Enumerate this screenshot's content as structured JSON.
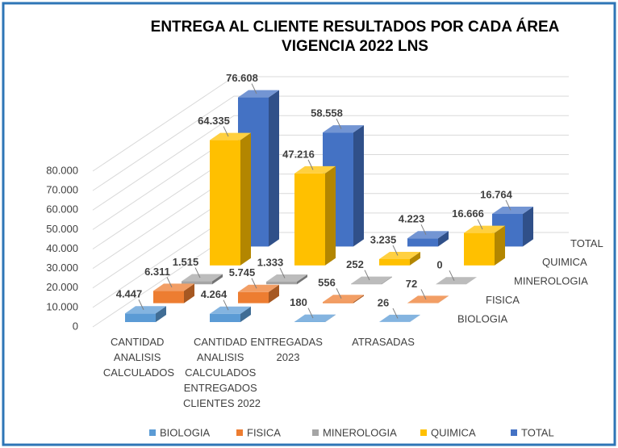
{
  "chart_data": {
    "type": "bar3d",
    "title": [
      "ENTREGA AL CLIENTE RESULTADOS POR CADA ÁREA",
      "VIGENCIA 2022 LNS"
    ],
    "categories": [
      "CANTIDAD ANALISIS CALCULADOS",
      "CANTIDAD ANALISIS CALCULADOS ENTREGADOS CLIENTES 2022",
      "ENTREGADAS 2023",
      "ATRASADAS"
    ],
    "series": [
      {
        "name": "BIOLOGIA",
        "color": "#5b9bd5",
        "values": [
          4447,
          4264,
          180,
          26
        ],
        "value_labels": [
          "4.447",
          "4.264",
          "180",
          "26"
        ]
      },
      {
        "name": "FISICA",
        "color": "#ed7d31",
        "values": [
          6311,
          5745,
          556,
          72
        ],
        "value_labels": [
          "6.311",
          "5.745",
          "556",
          "72"
        ]
      },
      {
        "name": "MINEROLOGIA",
        "color": "#a5a5a5",
        "values": [
          1515,
          1333,
          252,
          0
        ],
        "value_labels": [
          "1.515",
          "1.333",
          "252",
          "0"
        ]
      },
      {
        "name": "QUIMICA",
        "color": "#ffc000",
        "values": [
          64335,
          47216,
          3235,
          16666
        ],
        "value_labels": [
          "64.335",
          "47.216",
          "3.235",
          "16.666"
        ]
      },
      {
        "name": "TOTAL",
        "color": "#4472c4",
        "values": [
          76608,
          58558,
          4223,
          16764
        ],
        "value_labels": [
          "76.608",
          "58.558",
          "4.223",
          "16.764"
        ]
      }
    ],
    "ylim": [
      0,
      80000
    ],
    "yticks": [
      0,
      {
        "value": 10000,
        "label": "10.000"
      },
      {
        "value": 20000,
        "label": "20.000"
      },
      {
        "value": 30000,
        "label": "30.000"
      },
      {
        "value": 40000,
        "label": "40.000"
      },
      {
        "value": 50000,
        "label": "50.000"
      },
      {
        "value": 60000,
        "label": "60.000"
      },
      {
        "value": 70000,
        "label": "70.000"
      },
      {
        "value": 80000,
        "label": "80.000"
      }
    ],
    "grid": true,
    "legend": "bottom"
  }
}
